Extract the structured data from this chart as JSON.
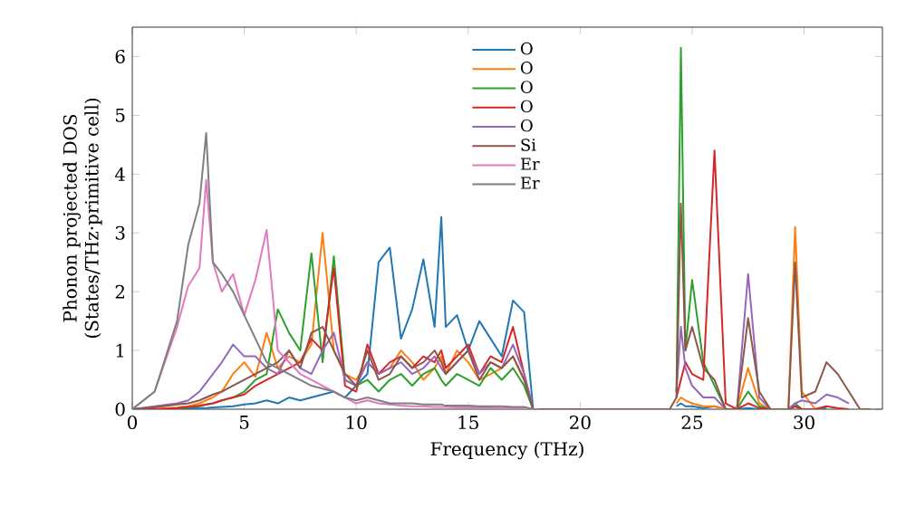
{
  "chart_data": {
    "type": "line",
    "xlabel": "Frequency (THz)",
    "ylabel": "Phonon projected DOS (States/THz·primitive cell)",
    "xlim": [
      0,
      33.5
    ],
    "ylim": [
      0,
      6.5
    ],
    "xticks": [
      0,
      5,
      10,
      15,
      20,
      25,
      30
    ],
    "yticks": [
      0,
      1,
      2,
      3,
      4,
      5,
      6
    ],
    "legend": "top",
    "grid": false,
    "marker": "none",
    "line_style": "solid",
    "x": [
      0,
      1,
      2,
      2.5,
      3,
      3.3,
      3.6,
      4,
      4.5,
      5,
      5.5,
      6,
      6.5,
      7,
      7.5,
      8,
      8.5,
      9,
      9.5,
      10,
      10.5,
      11,
      11.5,
      12,
      12.5,
      13,
      13.5,
      13.8,
      14,
      14.5,
      15,
      15.5,
      16,
      16.5,
      17,
      17.5,
      17.9,
      18.2,
      24,
      24.3,
      24.5,
      24.7,
      25,
      25.5,
      26,
      26.5,
      27,
      27.5,
      28,
      28.5,
      29,
      29.3,
      29.6,
      29.9,
      30.5,
      31,
      31.5,
      32,
      32.5,
      33
    ],
    "series": [
      {
        "name": "O",
        "color": "#1f77b4",
        "values": [
          0,
          0,
          0,
          0.01,
          0.02,
          0.02,
          0.03,
          0.04,
          0.05,
          0.08,
          0.1,
          0.15,
          0.1,
          0.2,
          0.15,
          0.2,
          0.25,
          0.3,
          0.2,
          0.4,
          0.6,
          2.5,
          2.75,
          1.2,
          1.7,
          2.55,
          1.4,
          3.27,
          1.4,
          1.6,
          1.0,
          1.5,
          1.2,
          0.9,
          1.85,
          1.65,
          0,
          0,
          null,
          0.05,
          0.1,
          0.05,
          0.05,
          0.02,
          0.05,
          0,
          0,
          0.02,
          0,
          0,
          0,
          0,
          0.05,
          0,
          0,
          0.02,
          null,
          null,
          null,
          null
        ]
      },
      {
        "name": "O",
        "color": "#ff7f0e",
        "values": [
          0,
          0,
          0.03,
          0.05,
          0.1,
          0.15,
          0.2,
          0.3,
          0.6,
          0.8,
          0.55,
          1.3,
          0.7,
          0.9,
          0.8,
          1.1,
          3.0,
          1.0,
          0.6,
          0.5,
          0.8,
          0.6,
          0.7,
          1.0,
          0.8,
          0.5,
          0.7,
          0.9,
          0.6,
          1.0,
          0.8,
          0.5,
          0.6,
          0.7,
          0.9,
          0.5,
          0,
          0,
          null,
          0.1,
          0.2,
          0.15,
          0.1,
          0.05,
          0.05,
          0,
          0,
          0.7,
          0.1,
          0,
          0,
          0,
          3.1,
          0.3,
          0,
          0.05,
          null,
          null,
          null,
          null
        ]
      },
      {
        "name": "O",
        "color": "#2ca02c",
        "values": [
          null,
          null,
          0.02,
          0.03,
          0.05,
          0.08,
          0.1,
          0.15,
          0.2,
          0.3,
          0.5,
          0.6,
          1.7,
          1.3,
          1.0,
          2.65,
          0.8,
          2.6,
          0.5,
          0.4,
          0.5,
          0.3,
          0.5,
          0.6,
          0.4,
          0.6,
          0.7,
          0.5,
          0.4,
          0.6,
          0.5,
          0.4,
          0.7,
          0.5,
          0.7,
          0.4,
          0,
          0,
          null,
          0.3,
          6.15,
          1.0,
          2.2,
          0.8,
          0.4,
          0,
          0,
          0.3,
          0.05,
          0,
          0,
          0,
          0.1,
          0,
          0,
          null,
          null,
          null,
          null,
          null
        ]
      },
      {
        "name": "O",
        "color": "#d62728",
        "values": [
          0,
          0,
          0.02,
          0.04,
          0.06,
          0.08,
          0.1,
          0.15,
          0.2,
          0.25,
          0.4,
          0.5,
          0.6,
          0.7,
          0.8,
          1.2,
          1.0,
          2.4,
          0.4,
          0.3,
          1.1,
          0.6,
          0.8,
          0.9,
          0.7,
          0.9,
          0.8,
          1.0,
          0.7,
          0.9,
          1.1,
          0.6,
          0.9,
          0.8,
          1.4,
          0.6,
          0,
          0,
          null,
          0.2,
          0.5,
          0.8,
          0.6,
          0.5,
          4.4,
          0.1,
          0,
          0.1,
          0.02,
          0,
          0,
          0,
          0.05,
          0,
          0,
          0.05,
          0.02,
          0,
          null,
          null
        ]
      },
      {
        "name": "O",
        "color": "#9467bd",
        "values": [
          0,
          0.05,
          0.1,
          0.15,
          0.3,
          0.45,
          0.6,
          0.8,
          1.1,
          0.9,
          0.9,
          0.7,
          0.6,
          1.0,
          0.7,
          0.6,
          1.0,
          1.3,
          0.5,
          0.4,
          0.8,
          0.6,
          0.7,
          0.8,
          0.6,
          0.7,
          0.9,
          0.7,
          0.6,
          0.8,
          1.0,
          0.6,
          0.8,
          0.7,
          1.1,
          0.6,
          0,
          0,
          null,
          0.3,
          1.4,
          0.7,
          0.4,
          0.2,
          0.2,
          0,
          0,
          2.3,
          0.2,
          0,
          0,
          0,
          0.1,
          0.15,
          0.1,
          0.25,
          0.2,
          0.1,
          null,
          null
        ]
      },
      {
        "name": "Si",
        "color": "#8c564b",
        "values": [
          0,
          0.03,
          0.08,
          0.1,
          0.15,
          0.2,
          0.25,
          0.3,
          0.4,
          0.5,
          0.6,
          0.7,
          0.8,
          1.0,
          0.7,
          1.3,
          1.4,
          1.0,
          0.6,
          0.4,
          1.0,
          0.5,
          0.6,
          0.9,
          0.7,
          0.8,
          1.0,
          0.8,
          0.6,
          0.8,
          1.0,
          0.5,
          0.8,
          0.7,
          0.9,
          0.5,
          0,
          0,
          0,
          0.2,
          3.5,
          1.0,
          1.4,
          0.7,
          0.5,
          0,
          0,
          1.55,
          0.3,
          0,
          0,
          0,
          2.5,
          0.2,
          0.3,
          0.8,
          0.6,
          0.3,
          0,
          0
        ]
      },
      {
        "name": "Er",
        "color": "#e377c2",
        "values": [
          0,
          0.3,
          1.4,
          2.1,
          2.4,
          3.9,
          2.5,
          2.0,
          2.3,
          1.6,
          2.2,
          3.05,
          1.0,
          0.8,
          0.6,
          0.5,
          0.4,
          0.3,
          0.2,
          0.1,
          0.15,
          0.1,
          0.08,
          0.06,
          0.05,
          0.05,
          0.04,
          0.04,
          0.04,
          0.03,
          0.03,
          0.03,
          0.03,
          0.02,
          0.02,
          0.02,
          0,
          0,
          null,
          null,
          null,
          null,
          null,
          null,
          null,
          null,
          null,
          null,
          null,
          null,
          null,
          null,
          null,
          null,
          null,
          null,
          null,
          null,
          null,
          null
        ]
      },
      {
        "name": "Er",
        "color": "#7f7f7f",
        "values": [
          0,
          0.3,
          1.5,
          2.8,
          3.5,
          4.7,
          2.5,
          2.3,
          2.0,
          1.6,
          1.2,
          0.8,
          0.7,
          0.6,
          0.5,
          0.4,
          0.35,
          0.3,
          0.2,
          0.15,
          0.2,
          0.15,
          0.1,
          0.1,
          0.1,
          0.08,
          0.08,
          0.08,
          0.06,
          0.06,
          0.06,
          0.05,
          0.05,
          0.05,
          0.04,
          0.04,
          0,
          0,
          null,
          null,
          null,
          null,
          null,
          null,
          null,
          null,
          null,
          null,
          null,
          null,
          null,
          null,
          null,
          null,
          null,
          null,
          null,
          null,
          null,
          null
        ]
      }
    ]
  }
}
